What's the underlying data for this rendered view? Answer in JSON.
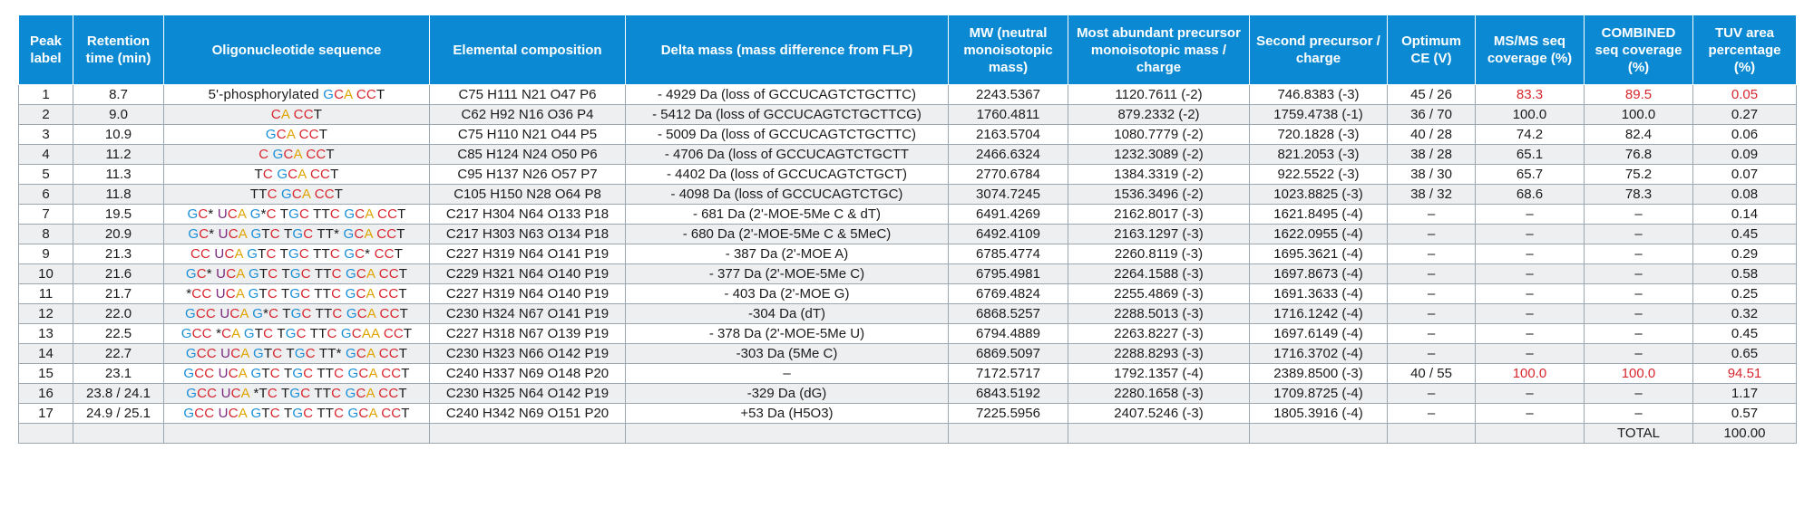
{
  "headers": [
    "Peak label",
    "Retention time (min)",
    "Oligonucleotide sequence",
    "Elemental composition",
    "Delta mass (mass difference from FLP)",
    "MW (neutral monoisotopic mass)",
    "Most abundant precursor monoisotopic mass / charge",
    "Second precursor / charge",
    "Optimum CE (V)",
    "MS/MS seq coverage (%)",
    "COMBINED seq coverage (%)",
    "TUV area percentage (%)"
  ],
  "rows": [
    {
      "peak": "1",
      "rt": "8.7",
      "seq": "5'-phosphorylated GCA CCT",
      "comp": "C75 H111 N21 O47 P6",
      "delta": "- 4929 Da (loss of GCCUCAGTCTGCTTC)",
      "mw": "2243.5367",
      "prec1": "1120.7611 (-2)",
      "prec2": "746.8383 (-3)",
      "ce": "45 / 26",
      "msms": "83.3",
      "comb": "89.5",
      "tuv": "0.05"
    },
    {
      "peak": "2",
      "rt": "9.0",
      "seq": "CA CCT",
      "comp": "C62 H92 N16 O36 P4",
      "delta": "- 5412 Da (loss of GCCUCAGTCTGCTTCG)",
      "mw": "1760.4811",
      "prec1": "879.2332 (-2)",
      "prec2": "1759.4738 (-1)",
      "ce": "36 / 70",
      "msms": "100.0",
      "comb": "100.0",
      "tuv": "0.27"
    },
    {
      "peak": "3",
      "rt": "10.9",
      "seq": "GCA CCT",
      "comp": "C75 H110 N21 O44 P5",
      "delta": "- 5009 Da (loss of GCCUCAGTCTGCTTC)",
      "mw": "2163.5704",
      "prec1": "1080.7779 (-2)",
      "prec2": "720.1828 (-3)",
      "ce": "40 / 28",
      "msms": "74.2",
      "comb": "82.4",
      "tuv": "0.06"
    },
    {
      "peak": "4",
      "rt": "11.2",
      "seq": "C GCA CCT",
      "comp": "C85 H124 N24 O50 P6",
      "delta": "- 4706 Da (loss of GCCUCAGTCTGCTT",
      "mw": "2466.6324",
      "prec1": "1232.3089 (-2)",
      "prec2": "821.2053 (-3)",
      "ce": "38 / 28",
      "msms": "65.1",
      "comb": "76.8",
      "tuv": "0.09"
    },
    {
      "peak": "5",
      "rt": "11.3",
      "seq": "TC GCA CCT",
      "comp": "C95 H137 N26 O57 P7",
      "delta": "- 4402 Da (loss of GCCUCAGTCTGCT)",
      "mw": "2770.6784",
      "prec1": "1384.3319 (-2)",
      "prec2": "922.5522 (-3)",
      "ce": "38 / 30",
      "msms": "65.7",
      "comb": "75.2",
      "tuv": "0.07"
    },
    {
      "peak": "6",
      "rt": "11.8",
      "seq": "TTC GCA CCT",
      "comp": "C105 H150 N28 O64 P8",
      "delta": "- 4098 Da (loss of GCCUCAGTCTGC)",
      "mw": "3074.7245",
      "prec1": "1536.3496 (-2)",
      "prec2": "1023.8825 (-3)",
      "ce": "38 / 32",
      "msms": "68.6",
      "comb": "78.3",
      "tuv": "0.08"
    },
    {
      "peak": "7",
      "rt": "19.5",
      "seq": "GC* UCA G*C TGC TTC GCA CCT",
      "comp": "C217 H304 N64 O133 P18",
      "delta": "- 681 Da (2'-MOE-5Me C & dT)",
      "mw": "6491.4269",
      "prec1": "2162.8017 (-3)",
      "prec2": "1621.8495 (-4)",
      "ce": "–",
      "msms": "–",
      "comb": "–",
      "tuv": "0.14"
    },
    {
      "peak": "8",
      "rt": "20.9",
      "seq": "GC* UCA GTC TGC TT* GCA CCT",
      "comp": "C217 H303 N63 O134 P18",
      "delta": "- 680 Da (2'-MOE-5Me C & 5MeC)",
      "mw": "6492.4109",
      "prec1": "2163.1297 (-3)",
      "prec2": "1622.0955 (-4)",
      "ce": "–",
      "msms": "–",
      "comb": "–",
      "tuv": "0.45"
    },
    {
      "peak": "9",
      "rt": "21.3",
      "seq": "CC UCA GTC TGC TTC GC* CCT",
      "comp": "C227 H319 N64 O141 P19",
      "delta": "- 387 Da (2'-MOE A)",
      "mw": "6785.4774",
      "prec1": "2260.8119 (-3)",
      "prec2": "1695.3621 (-4)",
      "ce": "–",
      "msms": "–",
      "comb": "–",
      "tuv": "0.29"
    },
    {
      "peak": "10",
      "rt": "21.6",
      "seq": "GC* UCA GTC TGC TTC GCA CCT",
      "comp": "C229 H321 N64 O140 P19",
      "delta": "- 377 Da (2'-MOE-5Me C)",
      "mw": "6795.4981",
      "prec1": "2264.1588 (-3)",
      "prec2": "1697.8673 (-4)",
      "ce": "–",
      "msms": "–",
      "comb": "–",
      "tuv": "0.58"
    },
    {
      "peak": "11",
      "rt": "21.7",
      "seq": "*CC UCA GTC TGC TTC GCA CCT",
      "comp": "C227 H319 N64 O140 P19",
      "delta": "- 403 Da (2'-MOE G)",
      "mw": "6769.4824",
      "prec1": "2255.4869 (-3)",
      "prec2": "1691.3633 (-4)",
      "ce": "–",
      "msms": "–",
      "comb": "–",
      "tuv": "0.25"
    },
    {
      "peak": "12",
      "rt": "22.0",
      "seq": "GCC UCA G*C TGC TTC GCA CCT",
      "comp": "C230 H324 N67 O141 P19",
      "delta": "-304 Da (dT)",
      "mw": "6868.5257",
      "prec1": "2288.5013 (-3)",
      "prec2": "1716.1242 (-4)",
      "ce": "–",
      "msms": "–",
      "comb": "–",
      "tuv": "0.32"
    },
    {
      "peak": "13",
      "rt": "22.5",
      "seq": "GCC *CA GTC TGC TTC GCAA CCT",
      "comp": "C227 H318 N67 O139 P19",
      "delta": "- 378 Da (2'-MOE-5Me U)",
      "mw": "6794.4889",
      "prec1": "2263.8227 (-3)",
      "prec2": "1697.6149 (-4)",
      "ce": "–",
      "msms": "–",
      "comb": "–",
      "tuv": "0.45"
    },
    {
      "peak": "14",
      "rt": "22.7",
      "seq": "GCC UCA GTC TGC TT* GCA CCT",
      "comp": "C230 H323 N66 O142 P19",
      "delta": "-303 Da (5Me C)",
      "mw": "6869.5097",
      "prec1": "2288.8293 (-3)",
      "prec2": "1716.3702 (-4)",
      "ce": "–",
      "msms": "–",
      "comb": "–",
      "tuv": "0.65"
    },
    {
      "peak": "15",
      "rt": "23.1",
      "seq": "GCC UCA GTC TGC TTC GCA CCT",
      "comp": "C240 H337 N69 O148 P20",
      "delta": "–",
      "mw": "7172.5717",
      "prec1": "1792.1357 (-4)",
      "prec2": "2389.8500 (-3)",
      "ce": "40 / 55",
      "msms": "100.0",
      "comb": "100.0",
      "tuv": "94.51"
    },
    {
      "peak": "16",
      "rt": "23.8 / 24.1",
      "seq": "GCC UCA *TC TGC TTC GCA CCT",
      "comp": "C230 H325 N64 O142 P19",
      "delta": "-329 Da (dG)",
      "mw": "6843.5192",
      "prec1": "2280.1658 (-3)",
      "prec2": "1709.8725 (-4)",
      "ce": "–",
      "msms": "–",
      "comb": "–",
      "tuv": "1.17"
    },
    {
      "peak": "17",
      "rt": "24.9 / 25.1",
      "seq": "GCC UCA GTC TGC TTC GCA CCT",
      "comp": "C240 H342 N69 O151 P20",
      "delta": "+53 Da (H5O3)",
      "mw": "7225.5956",
      "prec1": "2407.5246 (-3)",
      "prec2": "1805.3916 (-4)",
      "ce": "–",
      "msms": "–",
      "comb": "–",
      "tuv": "0.57"
    }
  ],
  "total": {
    "label": "TOTAL",
    "value": "100.00"
  },
  "highlighted_cells": [
    "1.msms",
    "1.comb",
    "1.tuv",
    "15.msms",
    "15.comb",
    "15.tuv"
  ],
  "colors": {
    "header_bg": "#0b8ad3",
    "highlight": "#d7262e",
    "base_G": "#1a8fd8",
    "base_C": "#d7262e",
    "base_A": "#e0a400",
    "base_U": "#7b2a7f",
    "base_T": "#1a1a1a"
  }
}
